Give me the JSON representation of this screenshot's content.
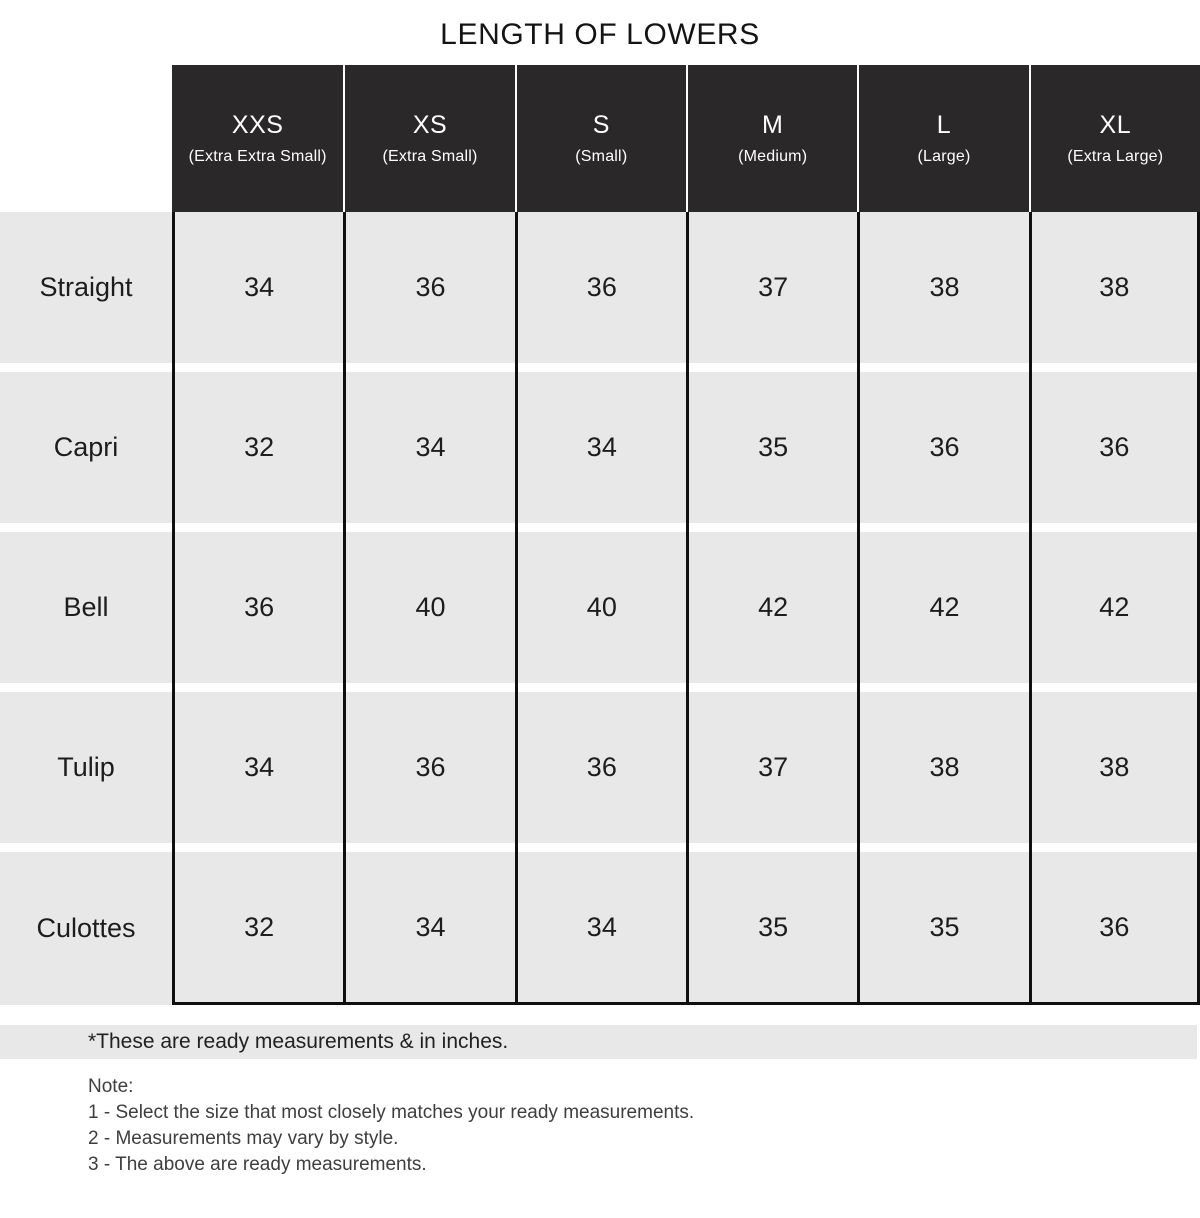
{
  "title": "LENGTH OF LOWERS",
  "table": {
    "columns": [
      {
        "size": "XXS",
        "full": "(Extra Extra Small)"
      },
      {
        "size": "XS",
        "full": "(Extra Small)"
      },
      {
        "size": "S",
        "full": "(Small)"
      },
      {
        "size": "M",
        "full": "(Medium)"
      },
      {
        "size": "L",
        "full": "(Large)"
      },
      {
        "size": "XL",
        "full": "(Extra Large)"
      }
    ],
    "rows": [
      {
        "label": "Straight",
        "values": [
          "34",
          "36",
          "36",
          "37",
          "38",
          "38"
        ]
      },
      {
        "label": "Capri",
        "values": [
          "32",
          "34",
          "34",
          "35",
          "36",
          "36"
        ]
      },
      {
        "label": "Bell",
        "values": [
          "36",
          "40",
          "40",
          "42",
          "42",
          "42"
        ]
      },
      {
        "label": "Tulip",
        "values": [
          "34",
          "36",
          "36",
          "37",
          "38",
          "38"
        ]
      },
      {
        "label": "Culottes",
        "values": [
          "32",
          "34",
          "34",
          "35",
          "35",
          "36"
        ]
      }
    ]
  },
  "footnote": "*These are ready measurements & in inches.",
  "note": {
    "heading": "Note:",
    "items": [
      "1 - Select the size that most closely matches your ready measurements.",
      "2 - Measurements may vary by style.",
      "3 - The above are ready measurements."
    ]
  },
  "colors": {
    "header_bg": "#2b2829",
    "header_text": "#ffffff",
    "cell_bg": "#e9e8e8",
    "border": "#101010",
    "text": "#1d1d1d",
    "note_text": "#3e3e3e"
  },
  "chart_data": {
    "type": "table",
    "title": "LENGTH OF LOWERS",
    "units": "inches",
    "columns": [
      "XXS (Extra Extra Small)",
      "XS (Extra Small)",
      "S (Small)",
      "M (Medium)",
      "L (Large)",
      "XL (Extra Large)"
    ],
    "row_labels": [
      "Straight",
      "Capri",
      "Bell",
      "Tulip",
      "Culottes"
    ],
    "values": [
      [
        34,
        36,
        36,
        37,
        38,
        38
      ],
      [
        32,
        34,
        34,
        35,
        36,
        36
      ],
      [
        36,
        40,
        40,
        42,
        42,
        42
      ],
      [
        34,
        36,
        36,
        37,
        38,
        38
      ],
      [
        32,
        34,
        34,
        35,
        35,
        36
      ]
    ]
  }
}
